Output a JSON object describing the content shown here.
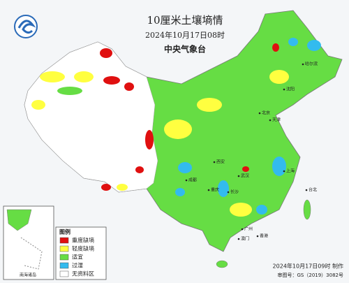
{
  "header": {
    "title": "10厘米土壤墒情",
    "subtitle": "2024年10月17日08时",
    "issuer": "中央气象台"
  },
  "legend": {
    "title": "图例",
    "items": [
      {
        "label": "重度缺墒",
        "color": "#e01010"
      },
      {
        "label": "轻度缺墒",
        "color": "#ffff40"
      },
      {
        "label": "适宜",
        "color": "#66dd44"
      },
      {
        "label": "过湿",
        "color": "#33bbee"
      },
      {
        "label": "无资料区",
        "color": "#ffffff"
      }
    ]
  },
  "inset": {
    "label": "南海诸岛"
  },
  "places": [
    "北京",
    "天津",
    "上海",
    "西安",
    "重庆",
    "成都",
    "武汉",
    "长沙",
    "广州",
    "香港",
    "澳门",
    "台北",
    "哈尔滨",
    "沈阳"
  ],
  "footer": {
    "made": "2024年10月17日09时 制作",
    "approval": "审图号：GS（2019）3082号"
  }
}
